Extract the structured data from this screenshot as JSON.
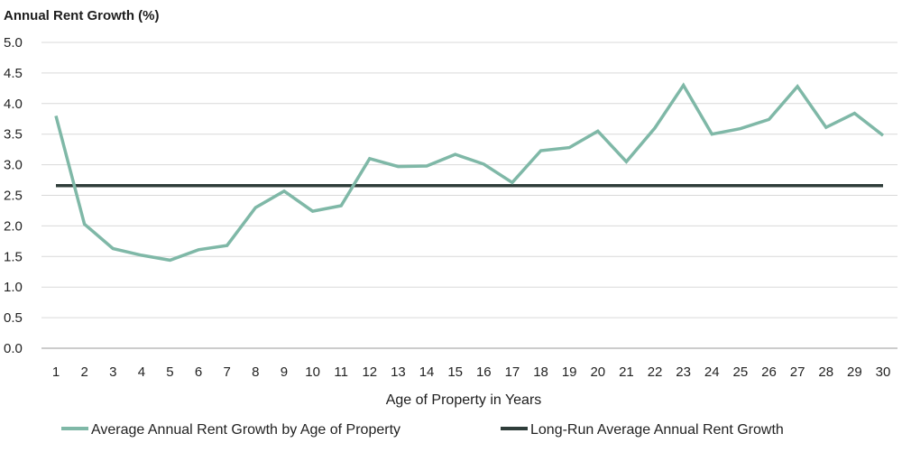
{
  "chart_data": {
    "type": "line",
    "title": "Annual Rent Growth (%)",
    "xlabel": "Age of Property in Years",
    "ylabel": "Annual Rent Growth (%)",
    "ylim": [
      0,
      5
    ],
    "yticks": [
      "0.0",
      "0.5",
      "1.0",
      "1.5",
      "2.0",
      "2.5",
      "3.0",
      "3.5",
      "4.0",
      "4.5",
      "5.0"
    ],
    "ytick_values": [
      0,
      0.5,
      1,
      1.5,
      2,
      2.5,
      3,
      3.5,
      4,
      4.5,
      5
    ],
    "x": [
      1,
      2,
      3,
      4,
      5,
      6,
      7,
      8,
      9,
      10,
      11,
      12,
      13,
      14,
      15,
      16,
      17,
      18,
      19,
      20,
      21,
      22,
      23,
      24,
      25,
      26,
      27,
      28,
      29,
      30
    ],
    "series": [
      {
        "name": "Average Annual Rent Growth by Age of Property",
        "color": "#7fb8a7",
        "values": [
          3.8,
          2.03,
          1.63,
          1.52,
          1.44,
          1.61,
          1.68,
          2.3,
          2.57,
          2.24,
          2.33,
          3.1,
          2.97,
          2.98,
          3.17,
          3.01,
          2.71,
          3.23,
          3.28,
          3.55,
          3.05,
          3.6,
          4.3,
          3.5,
          3.59,
          3.74,
          4.28,
          3.61,
          3.84,
          3.48
        ]
      },
      {
        "name": "Long-Run Average Annual Rent Growth",
        "color": "#2f3d3a",
        "values": [
          2.66,
          2.66,
          2.66,
          2.66,
          2.66,
          2.66,
          2.66,
          2.66,
          2.66,
          2.66,
          2.66,
          2.66,
          2.66,
          2.66,
          2.66,
          2.66,
          2.66,
          2.66,
          2.66,
          2.66,
          2.66,
          2.66,
          2.66,
          2.66,
          2.66,
          2.66,
          2.66,
          2.66,
          2.66,
          2.66
        ]
      }
    ],
    "grid": true,
    "legend_position": "bottom"
  }
}
